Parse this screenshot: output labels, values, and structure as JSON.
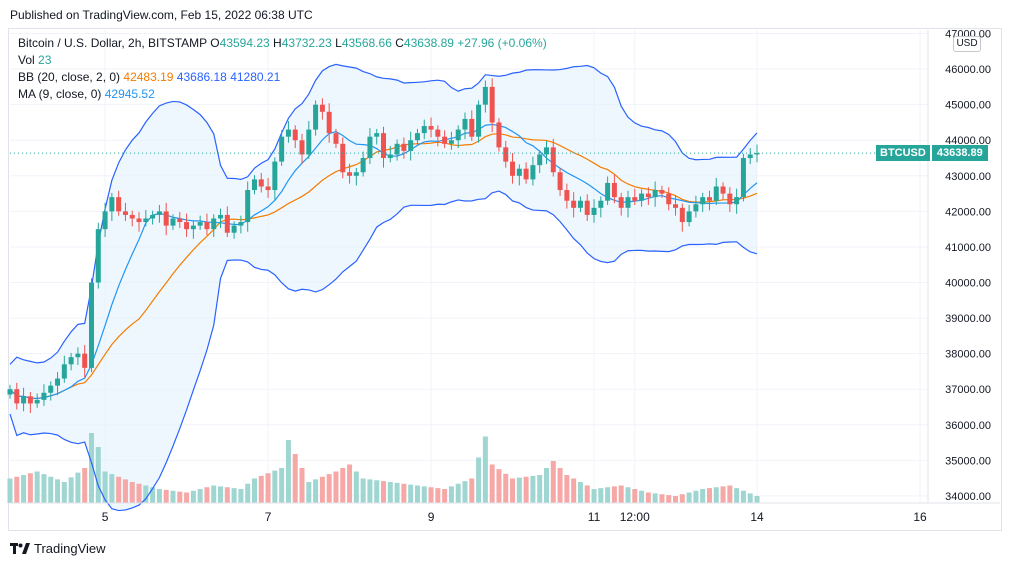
{
  "published": "Published on TradingView.com, Feb 15, 2022 06:38 UTC",
  "legend": {
    "title": "Bitcoin / U.S. Dollar, 2h, BITSTAMP",
    "o_label": "O",
    "o": "43594.23",
    "h_label": "H",
    "h": "43732.23",
    "l_label": "L",
    "l": "43568.66",
    "c_label": "C",
    "c": "43638.89",
    "change": "+27.96 (+0.06%)",
    "vol_label": "Vol",
    "vol": "23",
    "bb_label": "BB (20, close, 2, 0)",
    "bb_basis": "42483.19",
    "bb_upper": "43686.18",
    "bb_lower": "41280.21",
    "ma_label": "MA (9, close, 0)",
    "ma": "42945.52"
  },
  "currency": "USD",
  "price_tag": {
    "symbol": "BTCUSD",
    "value": "43638.89"
  },
  "brand": "TradingView",
  "colors": {
    "up": "#26a69a",
    "down": "#ef5350",
    "bb_band": "#2962ff",
    "bb_basis": "#f57c00",
    "ma": "#2196f3",
    "fill": "#e3f2fd"
  },
  "chart_data": {
    "type": "candlestick",
    "y_ticks": [
      "34000.00",
      "35000.00",
      "36000.00",
      "37000.00",
      "38000.00",
      "39000.00",
      "40000.00",
      "41000.00",
      "42000.00",
      "43000.00",
      "44000.00",
      "45000.00",
      "46000.00",
      "47000.00"
    ],
    "ylim": [
      33800,
      47100
    ],
    "x_ticks": [
      {
        "label": "5",
        "t": 14.0
      },
      {
        "label": "7",
        "t": 38.0
      },
      {
        "label": "9",
        "t": 62.0
      },
      {
        "label": "11",
        "t": 86.0
      },
      {
        "label": "12:00",
        "t": 92.0
      },
      {
        "label": "14",
        "t": 110.0
      },
      {
        "label": "16",
        "t": 134.0
      }
    ],
    "last_price": 43638.89,
    "price_path": [
      [
        0,
        37000
      ],
      [
        1,
        36600
      ],
      [
        2,
        36800
      ],
      [
        3,
        36600
      ],
      [
        4,
        36700
      ],
      [
        5,
        36900
      ],
      [
        6,
        37100
      ],
      [
        7,
        37300
      ],
      [
        8,
        37700
      ],
      [
        9,
        37900
      ],
      [
        10,
        38000
      ],
      [
        11,
        37600
      ],
      [
        12,
        40000
      ],
      [
        13,
        41500
      ],
      [
        14,
        42000
      ],
      [
        15,
        42400
      ],
      [
        16,
        42000
      ],
      [
        17,
        41900
      ],
      [
        18,
        41800
      ],
      [
        19,
        41700
      ],
      [
        20,
        41800
      ],
      [
        21,
        41900
      ],
      [
        22,
        42000
      ],
      [
        23,
        41600
      ],
      [
        24,
        41800
      ],
      [
        25,
        41700
      ],
      [
        26,
        41500
      ],
      [
        27,
        41600
      ],
      [
        28,
        41700
      ],
      [
        29,
        41500
      ],
      [
        30,
        41800
      ],
      [
        31,
        41900
      ],
      [
        32,
        41400
      ],
      [
        33,
        41600
      ],
      [
        34,
        41700
      ],
      [
        35,
        42600
      ],
      [
        36,
        42900
      ],
      [
        37,
        42700
      ],
      [
        38,
        42600
      ],
      [
        39,
        43400
      ],
      [
        40,
        44100
      ],
      [
        41,
        44300
      ],
      [
        42,
        44000
      ],
      [
        43,
        43600
      ],
      [
        44,
        44300
      ],
      [
        45,
        45000
      ],
      [
        46,
        44800
      ],
      [
        47,
        44200
      ],
      [
        48,
        43900
      ],
      [
        49,
        43100
      ],
      [
        50,
        43000
      ],
      [
        51,
        43100
      ],
      [
        52,
        43500
      ],
      [
        53,
        44100
      ],
      [
        54,
        44200
      ],
      [
        55,
        43500
      ],
      [
        56,
        43600
      ],
      [
        57,
        43900
      ],
      [
        58,
        43700
      ],
      [
        59,
        44000
      ],
      [
        60,
        44200
      ],
      [
        61,
        44400
      ],
      [
        62,
        44300
      ],
      [
        63,
        44100
      ],
      [
        64,
        43900
      ],
      [
        65,
        44000
      ],
      [
        66,
        44300
      ],
      [
        67,
        44600
      ],
      [
        68,
        44100
      ],
      [
        69,
        45000
      ],
      [
        70,
        45500
      ],
      [
        71,
        44500
      ],
      [
        72,
        43800
      ],
      [
        73,
        43400
      ],
      [
        74,
        43000
      ],
      [
        75,
        43200
      ],
      [
        76,
        42900
      ],
      [
        77,
        43300
      ],
      [
        78,
        43600
      ],
      [
        79,
        43800
      ],
      [
        80,
        43100
      ],
      [
        81,
        42600
      ],
      [
        82,
        42300
      ],
      [
        83,
        42100
      ],
      [
        84,
        42300
      ],
      [
        85,
        41900
      ],
      [
        86,
        42100
      ],
      [
        87,
        42300
      ],
      [
        88,
        42800
      ],
      [
        89,
        42400
      ],
      [
        90,
        42100
      ],
      [
        91,
        42400
      ],
      [
        92,
        42300
      ],
      [
        93,
        42500
      ],
      [
        94,
        42400
      ],
      [
        95,
        42600
      ],
      [
        96,
        42500
      ],
      [
        97,
        42200
      ],
      [
        98,
        42100
      ],
      [
        99,
        41700
      ],
      [
        100,
        42000
      ],
      [
        101,
        42200
      ],
      [
        102,
        42400
      ],
      [
        103,
        42300
      ],
      [
        104,
        42700
      ],
      [
        105,
        42500
      ],
      [
        106,
        42200
      ],
      [
        107,
        42400
      ],
      [
        108,
        43500
      ],
      [
        109,
        43600
      ],
      [
        110,
        43639
      ]
    ],
    "volume_path": [
      [
        0,
        0.35
      ],
      [
        4,
        0.45
      ],
      [
        8,
        0.3
      ],
      [
        11,
        0.5
      ],
      [
        12,
        1.0
      ],
      [
        13,
        0.8
      ],
      [
        14,
        0.45
      ],
      [
        18,
        0.3
      ],
      [
        22,
        0.2
      ],
      [
        26,
        0.15
      ],
      [
        30,
        0.25
      ],
      [
        34,
        0.2
      ],
      [
        36,
        0.35
      ],
      [
        40,
        0.5
      ],
      [
        41,
        0.9
      ],
      [
        44,
        0.3
      ],
      [
        48,
        0.45
      ],
      [
        50,
        0.55
      ],
      [
        52,
        0.35
      ],
      [
        56,
        0.3
      ],
      [
        60,
        0.25
      ],
      [
        64,
        0.2
      ],
      [
        68,
        0.35
      ],
      [
        70,
        0.95
      ],
      [
        71,
        0.55
      ],
      [
        74,
        0.35
      ],
      [
        78,
        0.4
      ],
      [
        80,
        0.6
      ],
      [
        82,
        0.4
      ],
      [
        86,
        0.2
      ],
      [
        90,
        0.25
      ],
      [
        94,
        0.15
      ],
      [
        98,
        0.1
      ],
      [
        102,
        0.2
      ],
      [
        106,
        0.25
      ],
      [
        110,
        0.1
      ]
    ]
  }
}
